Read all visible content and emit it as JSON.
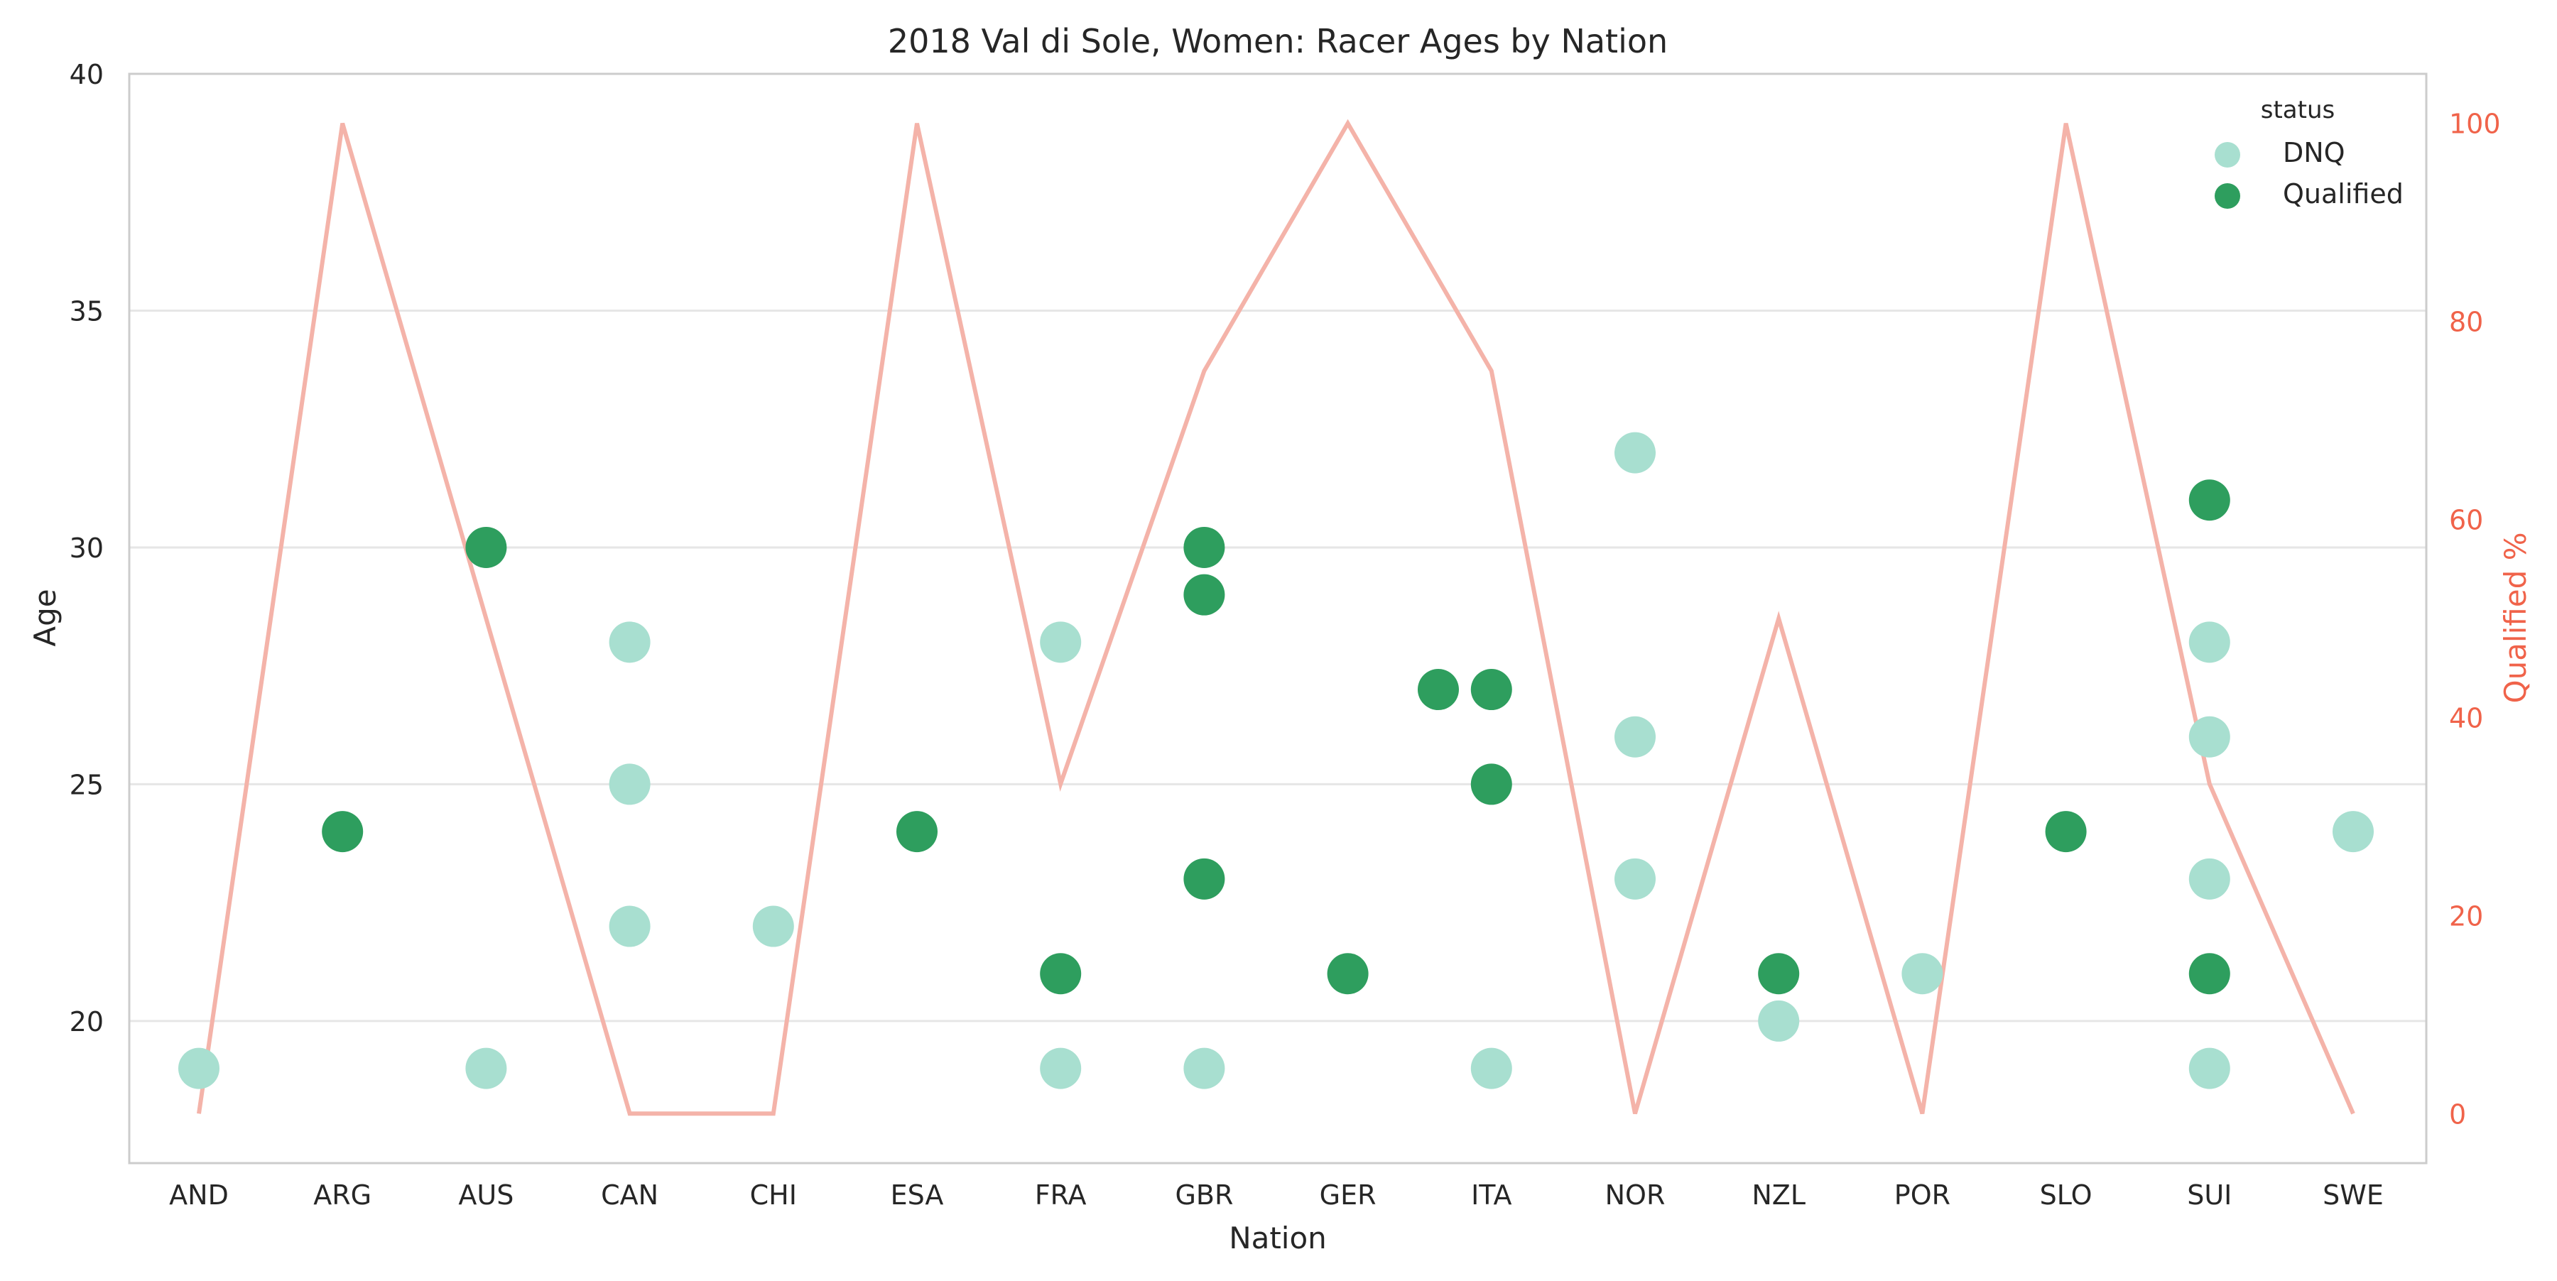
{
  "chart_data": {
    "type": "scatter",
    "title": "2018 Val di Sole, Women: Racer Ages by Nation",
    "xlabel": "Nation",
    "ylabel": "Age",
    "y2label": "Qualified %",
    "ylim": [
      17,
      40
    ],
    "y2lim": [
      -5,
      105
    ],
    "yticks": [
      20,
      25,
      30,
      35,
      40
    ],
    "y2ticks": [
      0,
      20,
      40,
      60,
      80,
      100
    ],
    "grid": true,
    "legend": {
      "title": "status",
      "position": "top-right",
      "entries": [
        {
          "label": "DNQ",
          "color": "#a8dfd0"
        },
        {
          "label": "Qualified",
          "color": "#2e9e5e"
        }
      ]
    },
    "colors": {
      "dnq": "#a8dfd0",
      "qualified": "#2e9e5e",
      "line": "#f4b3a9",
      "right_axis": "#f0634a"
    },
    "categories": [
      "AND",
      "ARG",
      "AUS",
      "CAN",
      "CHI",
      "ESA",
      "FRA",
      "GBR",
      "GER",
      "ITA",
      "NOR",
      "NZL",
      "POR",
      "SLO",
      "SUI",
      "SWE"
    ],
    "points": [
      {
        "nation": "AND",
        "age": 19,
        "status": "DNQ"
      },
      {
        "nation": "ARG",
        "age": 24,
        "status": "Qualified"
      },
      {
        "nation": "AUS",
        "age": 30,
        "status": "Qualified"
      },
      {
        "nation": "AUS",
        "age": 19,
        "status": "DNQ"
      },
      {
        "nation": "CAN",
        "age": 28,
        "status": "DNQ"
      },
      {
        "nation": "CAN",
        "age": 25,
        "status": "DNQ"
      },
      {
        "nation": "CAN",
        "age": 22,
        "status": "DNQ"
      },
      {
        "nation": "CHI",
        "age": 22,
        "status": "DNQ"
      },
      {
        "nation": "ESA",
        "age": 24,
        "status": "Qualified"
      },
      {
        "nation": "FRA",
        "age": 28,
        "status": "DNQ"
      },
      {
        "nation": "FRA",
        "age": 21,
        "status": "Qualified"
      },
      {
        "nation": "FRA",
        "age": 19,
        "status": "DNQ"
      },
      {
        "nation": "GBR",
        "age": 30,
        "status": "Qualified"
      },
      {
        "nation": "GBR",
        "age": 29,
        "status": "Qualified"
      },
      {
        "nation": "GBR",
        "age": 23,
        "status": "Qualified"
      },
      {
        "nation": "GBR",
        "age": 19,
        "status": "DNQ"
      },
      {
        "nation": "GER",
        "age": 21,
        "status": "Qualified"
      },
      {
        "nation": "ITA",
        "age": 27,
        "status": "Qualified",
        "offset": -0.37
      },
      {
        "nation": "ITA",
        "age": 27,
        "status": "Qualified"
      },
      {
        "nation": "ITA",
        "age": 25,
        "status": "Qualified"
      },
      {
        "nation": "ITA",
        "age": 19,
        "status": "DNQ"
      },
      {
        "nation": "NOR",
        "age": 32,
        "status": "DNQ"
      },
      {
        "nation": "NOR",
        "age": 26,
        "status": "DNQ"
      },
      {
        "nation": "NOR",
        "age": 23,
        "status": "DNQ"
      },
      {
        "nation": "NZL",
        "age": 21,
        "status": "Qualified"
      },
      {
        "nation": "NZL",
        "age": 20,
        "status": "DNQ"
      },
      {
        "nation": "POR",
        "age": 21,
        "status": "DNQ"
      },
      {
        "nation": "SLO",
        "age": 24,
        "status": "Qualified"
      },
      {
        "nation": "SUI",
        "age": 31,
        "status": "Qualified"
      },
      {
        "nation": "SUI",
        "age": 28,
        "status": "DNQ"
      },
      {
        "nation": "SUI",
        "age": 26,
        "status": "DNQ"
      },
      {
        "nation": "SUI",
        "age": 23,
        "status": "DNQ"
      },
      {
        "nation": "SUI",
        "age": 21,
        "status": "Qualified"
      },
      {
        "nation": "SUI",
        "age": 19,
        "status": "DNQ"
      },
      {
        "nation": "SWE",
        "age": 24,
        "status": "DNQ"
      }
    ],
    "series": [
      {
        "name": "Qualified %",
        "axis": "right",
        "values": [
          0,
          100,
          50,
          0,
          0,
          100,
          33.3,
          75,
          100,
          75,
          0,
          50,
          0,
          100,
          33.3,
          0
        ]
      }
    ]
  }
}
